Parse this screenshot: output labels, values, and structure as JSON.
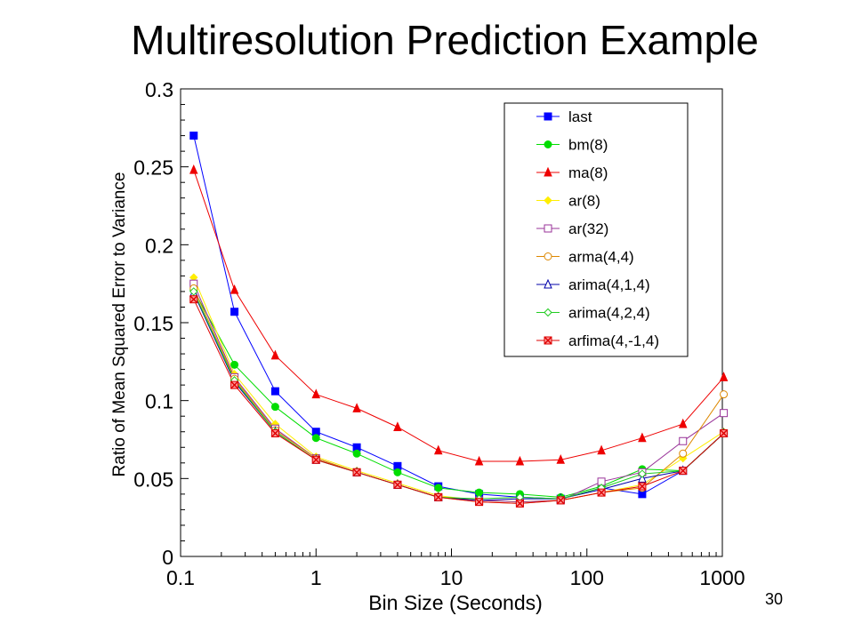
{
  "slide": {
    "title": "Multiresolution Prediction Example",
    "page_number": "30"
  },
  "chart_data": {
    "type": "line",
    "title": "",
    "xlabel": "Bin Size (Seconds)",
    "ylabel": "Ratio of Mean Squared Error to Variance",
    "xscale": "log",
    "xlim": [
      0.1,
      1000
    ],
    "ylim": [
      0,
      0.3
    ],
    "x_ticks": [
      0.1,
      1,
      10,
      100,
      1000
    ],
    "x_tick_labels": [
      "0.1",
      "1",
      "10",
      "100",
      "1000"
    ],
    "y_ticks": [
      0,
      0.05,
      0.1,
      0.15,
      0.2,
      0.25,
      0.3
    ],
    "y_tick_labels": [
      "0",
      "0.05",
      "0.1",
      "0.15",
      "0.2",
      "0.25",
      "0.3"
    ],
    "grid": false,
    "legend_position": "top-right",
    "x": [
      0.125,
      0.25,
      0.5,
      1,
      2,
      4,
      8,
      16,
      32,
      64,
      128,
      256,
      512,
      1024
    ],
    "series": [
      {
        "name": "last",
        "color": "#0000ff",
        "marker": "square-filled",
        "values": [
          0.27,
          0.157,
          0.106,
          0.08,
          0.07,
          0.058,
          0.045,
          0.04,
          0.038,
          0.037,
          0.044,
          0.04,
          0.055,
          0.079
        ]
      },
      {
        "name": "bm(8)",
        "color": "#00dd00",
        "marker": "circle-filled",
        "values": [
          0.171,
          0.123,
          0.096,
          0.076,
          0.066,
          0.054,
          0.044,
          0.041,
          0.04,
          0.038,
          0.045,
          0.056,
          0.055,
          0.079
        ]
      },
      {
        "name": "ma(8)",
        "color": "#ee0000",
        "marker": "triangle-filled",
        "values": [
          0.248,
          0.171,
          0.129,
          0.104,
          0.095,
          0.083,
          0.068,
          0.061,
          0.061,
          0.062,
          0.068,
          0.076,
          0.085,
          0.115
        ]
      },
      {
        "name": "ar(8)",
        "color": "#ffee00",
        "marker": "diamond-filled",
        "values": [
          0.179,
          0.117,
          0.085,
          0.064,
          0.055,
          0.047,
          0.039,
          0.036,
          0.035,
          0.036,
          0.041,
          0.046,
          0.063,
          0.08
        ]
      },
      {
        "name": "ar(32)",
        "color": "#993399",
        "marker": "square-open",
        "values": [
          0.175,
          0.115,
          0.082,
          0.063,
          0.054,
          0.046,
          0.038,
          0.036,
          0.035,
          0.036,
          0.048,
          0.054,
          0.074,
          0.092
        ]
      },
      {
        "name": "arma(4,4)",
        "color": "#dd8800",
        "marker": "circle-open",
        "values": [
          0.172,
          0.114,
          0.081,
          0.063,
          0.054,
          0.046,
          0.038,
          0.035,
          0.034,
          0.036,
          0.041,
          0.044,
          0.066,
          0.104
        ]
      },
      {
        "name": "arima(4,1,4)",
        "color": "#0000aa",
        "marker": "triangle-open",
        "values": [
          0.169,
          0.112,
          0.08,
          0.062,
          0.054,
          0.046,
          0.038,
          0.036,
          0.037,
          0.037,
          0.043,
          0.05,
          0.055,
          0.079
        ]
      },
      {
        "name": "arima(4,2,4)",
        "color": "#22cc22",
        "marker": "diamond-open",
        "values": [
          0.17,
          0.113,
          0.08,
          0.062,
          0.054,
          0.046,
          0.038,
          0.037,
          0.038,
          0.037,
          0.044,
          0.053,
          0.055,
          0.079
        ]
      },
      {
        "name": "arfima(4,-1,4)",
        "color": "#dd0000",
        "marker": "x-square",
        "values": [
          0.165,
          0.11,
          0.079,
          0.062,
          0.054,
          0.046,
          0.038,
          0.035,
          0.034,
          0.036,
          0.041,
          0.045,
          0.055,
          0.079
        ]
      }
    ]
  }
}
